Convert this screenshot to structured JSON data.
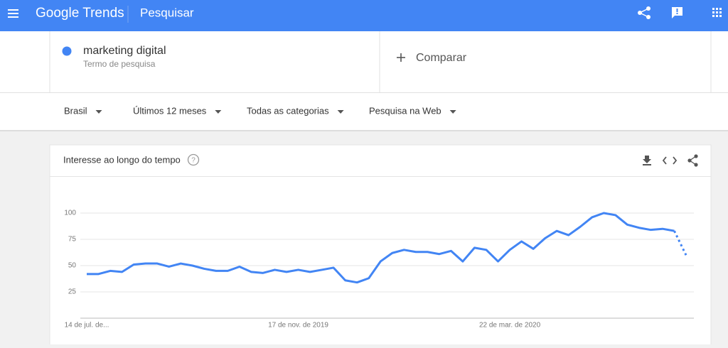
{
  "header": {
    "logo": "Google Trends",
    "page": "Pesquisar"
  },
  "search": {
    "term": "marketing digital",
    "term_type": "Termo de pesquisa",
    "compare": "Comparar"
  },
  "filters": [
    "Brasil",
    "Últimos 12 meses",
    "Todas as categorias",
    "Pesquisa na Web"
  ],
  "chart_data": {
    "type": "line",
    "title": "Interesse ao longo do tempo",
    "x": [
      "14 de jul. de...",
      null,
      null,
      null,
      null,
      null,
      null,
      null,
      null,
      null,
      null,
      null,
      null,
      null,
      null,
      null,
      null,
      null,
      "17 de nov. de 2019",
      null,
      null,
      null,
      null,
      null,
      null,
      null,
      null,
      null,
      null,
      null,
      null,
      null,
      null,
      null,
      null,
      null,
      "22 de mar. de 2020",
      null,
      null,
      null,
      null,
      null,
      null,
      null,
      null,
      null,
      null,
      null,
      null,
      null,
      null,
      null
    ],
    "series": [
      {
        "color": "#4285f4",
        "values": [
          42,
          42,
          45,
          44,
          51,
          52,
          52,
          49,
          52,
          50,
          47,
          45,
          45,
          49,
          44,
          43,
          46,
          44,
          46,
          44,
          46,
          48,
          36,
          34,
          38,
          54,
          62,
          65,
          63,
          63,
          61,
          64,
          54,
          67,
          65,
          54,
          65,
          73,
          66,
          76,
          83,
          79,
          87,
          96,
          100,
          98,
          89,
          86,
          84,
          85,
          83,
          60
        ]
      }
    ],
    "ylim": [
      0,
      100
    ],
    "yticks": [
      25,
      50,
      75,
      100
    ],
    "grid": true,
    "partial_last": true
  }
}
